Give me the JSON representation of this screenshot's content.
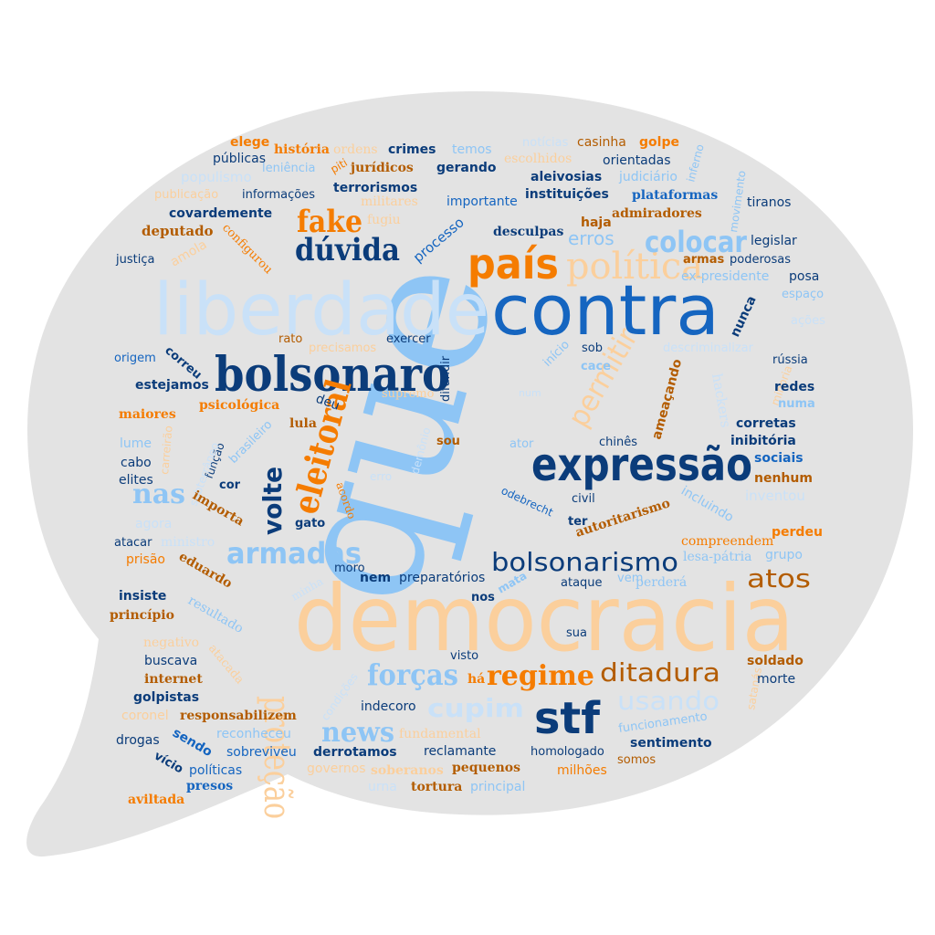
{
  "colors": {
    "navy": "#0b3c7a",
    "blue": "#1565c0",
    "sky": "#8ec5f5",
    "pale": "#c9e1f8",
    "orange": "#f57c00",
    "brown": "#b35c00",
    "peach": "#fbcf9c",
    "bubble": "#e3e3e3"
  },
  "words": {
    "que": "que",
    "democracia": "democracia",
    "liberdade": "liberdade",
    "contra": "contra",
    "bolsonaro": "bolsonaro",
    "expressao": "expressão",
    "stf": "stf",
    "pais": "país",
    "eleitoral": "eleitoral",
    "duvida": "dúvida",
    "fake": "fake",
    "colocar": "colocar",
    "politica": "política",
    "bolsonarismo": "bolsonarismo",
    "armadas": "armadas",
    "forcas": "forças",
    "regime": "regime",
    "ditadura": "ditadura",
    "news": "news",
    "cupim": "cupim",
    "usando": "usando",
    "atos": "atos",
    "nas": "nas",
    "volte": "volte",
    "permitir": "permitir",
    "protecao": "proteção",
    "elege": "elege",
    "historia": "história",
    "ordens": "ordens",
    "crimes": "crimes",
    "temos": "temos",
    "noticias": "notícias",
    "casinha": "casinha",
    "golpe": "golpe",
    "inferno": "inferno",
    "publicas": "públicas",
    "leniencia": "leniência",
    "piti": "piti",
    "juridicos": "jurídicos",
    "gerando": "gerando",
    "escolhidos": "escolhidos",
    "orientadas": "orientadas",
    "populismo": "populismo",
    "aleivosias": "aleivosias",
    "judiciario": "judiciário",
    "movimento": "movimento",
    "publicacao": "publicação",
    "informacoes": "informações",
    "terrorismos": "terrorismos",
    "instituicoes": "instituições",
    "plataformas": "plataformas",
    "tiranos": "tiranos",
    "importante": "importante",
    "covardemente": "covardemente",
    "militares": "militares",
    "admiradores": "admiradores",
    "haja": "haja",
    "fugiu": "fugiu",
    "deputado": "deputado",
    "processo": "processo",
    "desculpas": "desculpas",
    "erros": "erros",
    "legislar": "legislar",
    "justica": "justiça",
    "amola": "amola",
    "configurou": "configurou",
    "armas": "armas",
    "poderosas": "poderosas",
    "ex_presidente": "ex-presidente",
    "posa": "posa",
    "espaco": "espaço",
    "nunca": "nunca",
    "acoes": "ações",
    "rato": "rato",
    "precisamos": "precisamos",
    "exercer": "exercer",
    "difundir": "difundir",
    "inicio": "início",
    "sob": "sob",
    "descriminalizar": "descriminalizar",
    "origem": "origem",
    "correu": "correu",
    "cace": "cace",
    "russia": "rússia",
    "estejamos": "estejamos",
    "ameacando": "ameaçando",
    "hackers": "hackers",
    "minoria": "minoria",
    "redes": "redes",
    "numa": "numa",
    "maiores": "maiores",
    "psicologica": "psicológica",
    "deu": "deu",
    "supremo": "supremo",
    "num": "num",
    "corretas": "corretas",
    "lula": "lula",
    "lume": "lume",
    "carreirao": "carreirão",
    "brasileiro": "brasileiro",
    "demonio": "demônio",
    "chines": "chinês",
    "inibitoria": "inibitória",
    "sou": "sou",
    "ator": "ator",
    "sociais": "sociais",
    "cabo": "cabo",
    "funcao": "função",
    "subterraneo": "subterrâneo",
    "elites": "elites",
    "nenhum": "nenhum",
    "cor": "cor",
    "acordo": "acordo",
    "erro": "erro",
    "inventou": "inventou",
    "importa": "importa",
    "odebrecht": "odebrecht",
    "civil": "civil",
    "incluindo": "incluindo",
    "gato": "gato",
    "ter": "ter",
    "autoritarismo": "autoritarismo",
    "agora": "agora",
    "ministro": "ministro",
    "compreendem": "compreendem",
    "perdeu": "perdeu",
    "atacar": "atacar",
    "grupo": "grupo",
    "lesa_patria": "lesa-pátria",
    "prisao": "prisão",
    "eduardo": "eduardo",
    "moro": "moro",
    "nem": "nem",
    "preparatorios": "preparatórios",
    "ataque": "ataque",
    "vem": "vem",
    "minha": "minha",
    "mata": "mata",
    "perdera": "perderá",
    "insiste": "insiste",
    "principio": "princípio",
    "resultado": "resultado",
    "nos": "nos",
    "sua": "sua",
    "negativo": "negativo",
    "buscava": "buscava",
    "atacada": "atacada",
    "visto": "visto",
    "soldado": "soldado",
    "internet": "internet",
    "ha": "há",
    "satanas": "satanás",
    "morte": "morte",
    "golpistas": "golpistas",
    "condicoes": "condições",
    "coronel": "coronel",
    "responsabilizem": "responsabilizem",
    "indecoro": "indecoro",
    "drogas": "drogas",
    "sendo": "sendo",
    "reconheceu": "reconheceu",
    "fundamental": "fundamental",
    "funcionamento": "funcionamento",
    "sentimento": "sentimento",
    "sobreviveu": "sobreviveu",
    "derrotamos": "derrotamos",
    "reclamante": "reclamante",
    "homologado": "homologado",
    "somos": "somos",
    "vicio": "vício",
    "politicas": "políticas",
    "governos": "governos",
    "soberanos": "soberanos",
    "pequenos": "pequenos",
    "milhoes": "milhões",
    "presos": "presos",
    "urna": "urna",
    "tortura": "tortura",
    "principal": "principal",
    "aviltada": "aviltada"
  }
}
